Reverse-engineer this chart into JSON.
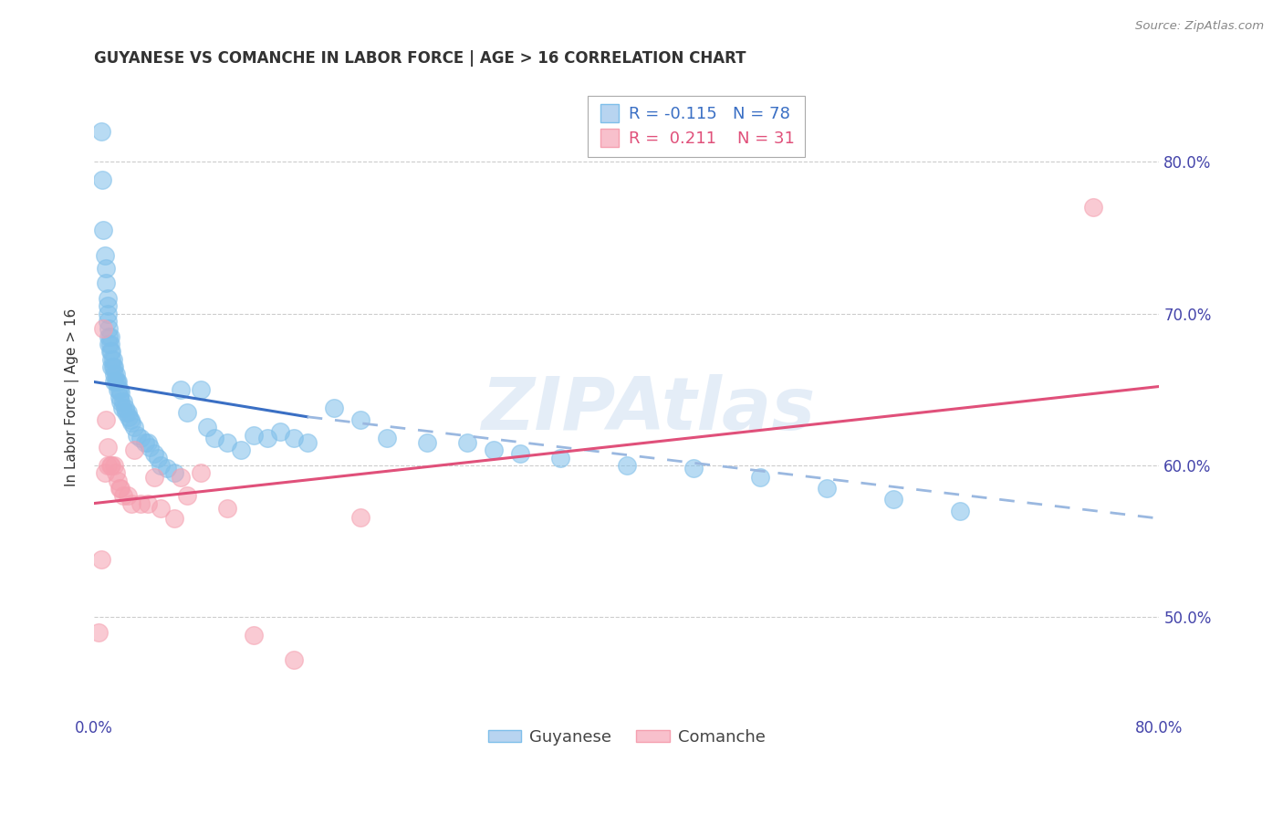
{
  "title": "GUYANESE VS COMANCHE IN LABOR FORCE | AGE > 16 CORRELATION CHART",
  "source": "Source: ZipAtlas.com",
  "ylabel": "In Labor Force | Age > 16",
  "xlim": [
    0.0,
    0.8
  ],
  "ylim": [
    0.435,
    0.855
  ],
  "guyanese_color": "#7fbfea",
  "comanche_color": "#f5a0b0",
  "regression_blue": "#3a6fc4",
  "regression_blue_dash": "#9ab8e0",
  "regression_pink": "#e0507a",
  "legend_R_blue": "-0.115",
  "legend_N_blue": "78",
  "legend_R_pink": "0.211",
  "legend_N_pink": "31",
  "guyanese_x": [
    0.005,
    0.006,
    0.007,
    0.008,
    0.009,
    0.009,
    0.01,
    0.01,
    0.01,
    0.01,
    0.011,
    0.011,
    0.011,
    0.012,
    0.012,
    0.012,
    0.013,
    0.013,
    0.013,
    0.014,
    0.014,
    0.015,
    0.015,
    0.015,
    0.016,
    0.016,
    0.017,
    0.018,
    0.018,
    0.019,
    0.019,
    0.02,
    0.02,
    0.021,
    0.022,
    0.023,
    0.024,
    0.025,
    0.026,
    0.027,
    0.028,
    0.03,
    0.032,
    0.035,
    0.038,
    0.04,
    0.042,
    0.045,
    0.048,
    0.05,
    0.055,
    0.06,
    0.065,
    0.07,
    0.08,
    0.085,
    0.09,
    0.1,
    0.11,
    0.12,
    0.13,
    0.14,
    0.15,
    0.16,
    0.18,
    0.2,
    0.22,
    0.25,
    0.28,
    0.3,
    0.32,
    0.35,
    0.4,
    0.45,
    0.5,
    0.55,
    0.6,
    0.65
  ],
  "guyanese_y": [
    0.82,
    0.788,
    0.755,
    0.738,
    0.73,
    0.72,
    0.71,
    0.705,
    0.7,
    0.695,
    0.69,
    0.685,
    0.68,
    0.685,
    0.68,
    0.675,
    0.675,
    0.67,
    0.665,
    0.67,
    0.665,
    0.665,
    0.66,
    0.655,
    0.66,
    0.655,
    0.655,
    0.655,
    0.65,
    0.65,
    0.645,
    0.648,
    0.642,
    0.638,
    0.642,
    0.638,
    0.635,
    0.635,
    0.632,
    0.63,
    0.628,
    0.625,
    0.62,
    0.618,
    0.615,
    0.615,
    0.612,
    0.608,
    0.605,
    0.6,
    0.598,
    0.595,
    0.65,
    0.635,
    0.65,
    0.625,
    0.618,
    0.615,
    0.61,
    0.62,
    0.618,
    0.622,
    0.618,
    0.615,
    0.638,
    0.63,
    0.618,
    0.615,
    0.615,
    0.61,
    0.608,
    0.605,
    0.6,
    0.598,
    0.592,
    0.585,
    0.578,
    0.57
  ],
  "comanche_x": [
    0.003,
    0.005,
    0.007,
    0.008,
    0.009,
    0.01,
    0.01,
    0.012,
    0.013,
    0.015,
    0.016,
    0.018,
    0.019,
    0.02,
    0.022,
    0.025,
    0.028,
    0.03,
    0.035,
    0.04,
    0.045,
    0.05,
    0.06,
    0.065,
    0.07,
    0.08,
    0.1,
    0.12,
    0.15,
    0.2,
    0.75
  ],
  "comanche_y": [
    0.49,
    0.538,
    0.69,
    0.595,
    0.63,
    0.6,
    0.612,
    0.6,
    0.6,
    0.6,
    0.595,
    0.59,
    0.585,
    0.585,
    0.58,
    0.58,
    0.575,
    0.61,
    0.575,
    0.575,
    0.592,
    0.572,
    0.565,
    0.592,
    0.58,
    0.595,
    0.572,
    0.488,
    0.472,
    0.566,
    0.77
  ],
  "blue_line_x0": 0.0,
  "blue_line_x_solid_end": 0.16,
  "blue_line_x_dash_end": 0.8,
  "blue_line_y0": 0.655,
  "blue_line_y_solid_end": 0.632,
  "blue_line_y_dash_end": 0.565,
  "pink_line_x0": 0.0,
  "pink_line_x_end": 0.8,
  "pink_line_y0": 0.575,
  "pink_line_y_end": 0.652,
  "watermark": "ZIPAtlas",
  "background_color": "#ffffff",
  "grid_color": "#cccccc",
  "axis_label_color": "#4444aa",
  "title_color": "#333333"
}
